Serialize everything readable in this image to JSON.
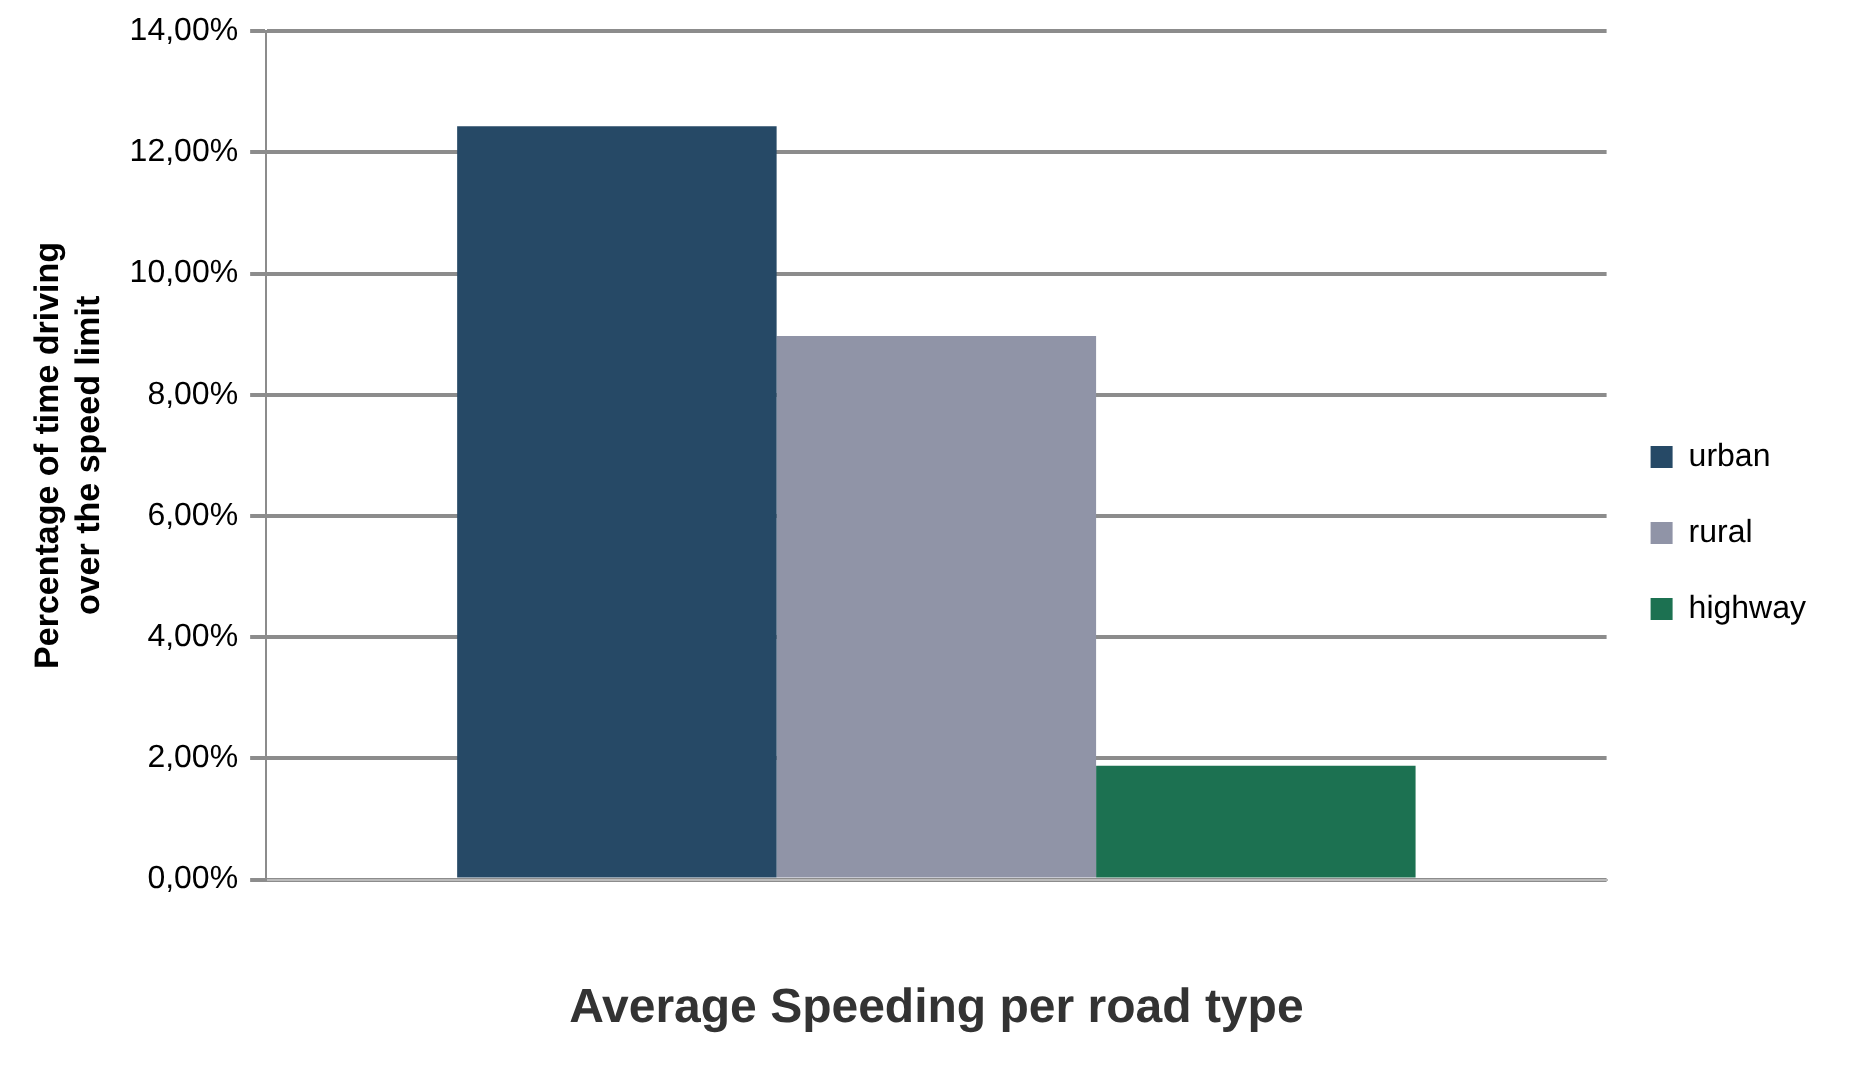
{
  "chart_data": {
    "type": "bar",
    "xlabel": "Average Speeding per road type",
    "ylabel": "Percentage of time driving over the speed limit",
    "categories": [
      null
    ],
    "series": [
      {
        "name": "urban",
        "color": "#264966",
        "values": [
          12.43
        ]
      },
      {
        "name": "rural",
        "color": "#9094a7",
        "values": [
          8.97
        ]
      },
      {
        "name": "highway",
        "color": "#1c7151",
        "values": [
          1.88
        ]
      }
    ],
    "ylim": [
      0,
      14
    ],
    "yticks": [
      {
        "value": 0,
        "label": "0,00%"
      },
      {
        "value": 2,
        "label": "2,00%"
      },
      {
        "value": 4,
        "label": "4,00%"
      },
      {
        "value": 6,
        "label": "6,00%"
      },
      {
        "value": 8,
        "label": "8,00%"
      },
      {
        "value": 10,
        "label": "10,00%"
      },
      {
        "value": 12,
        "label": "12,00%"
      },
      {
        "value": 14,
        "label": "14,00%"
      }
    ],
    "grid": "y",
    "legend": "right"
  }
}
